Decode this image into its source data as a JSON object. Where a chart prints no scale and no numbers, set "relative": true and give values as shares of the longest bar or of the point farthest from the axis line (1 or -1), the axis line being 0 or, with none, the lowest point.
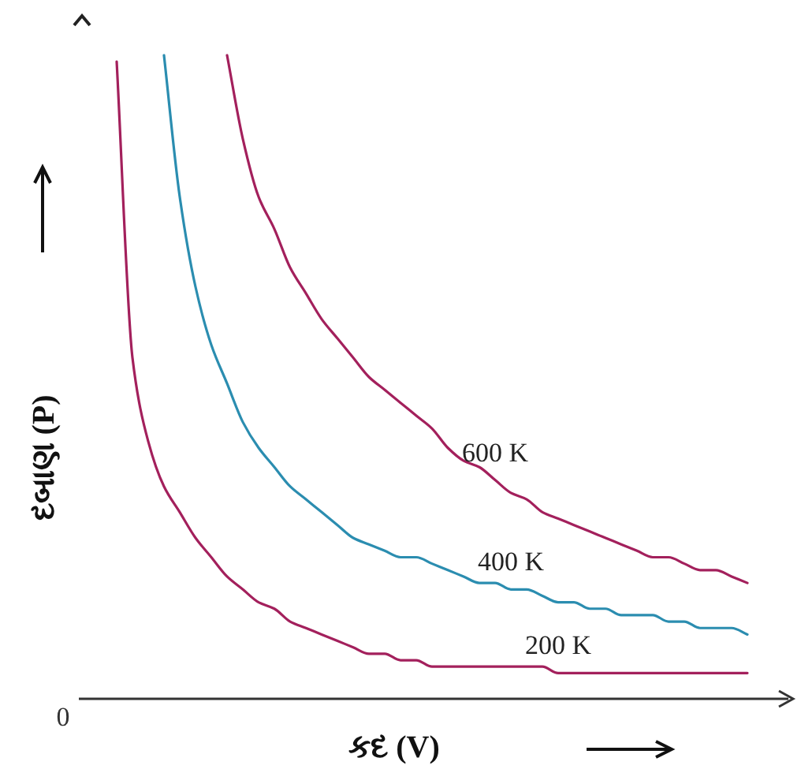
{
  "chart_data": {
    "type": "line",
    "relative": true,
    "xlabel": "કદ (V)",
    "ylabel": "દબાણ (P)",
    "annotations": [
      "0"
    ],
    "line_style": "solid",
    "categories": [
      null,
      null,
      null,
      null,
      null,
      null,
      null,
      null,
      null,
      null,
      null,
      null,
      null,
      null,
      null,
      null,
      null,
      null,
      null,
      null,
      null,
      null,
      null,
      null,
      null,
      null,
      null,
      null,
      null,
      null,
      null,
      null,
      null,
      null,
      null,
      null,
      null,
      null,
      null,
      null,
      null
    ],
    "series": [
      {
        "name": "600 K",
        "color": "#a3205c",
        "values": [
          null,
          null,
          null,
          null,
          null,
          null,
          null,
          1.0,
          0.87,
          0.78,
          0.73,
          0.67,
          0.63,
          0.59,
          0.56,
          0.53,
          0.5,
          0.48,
          0.46,
          0.44,
          0.42,
          0.39,
          0.37,
          0.36,
          0.34,
          0.32,
          0.31,
          0.29,
          0.28,
          0.27,
          0.26,
          0.25,
          0.24,
          0.23,
          0.22,
          0.22,
          0.21,
          0.2,
          0.2,
          0.19,
          0.18
        ]
      },
      {
        "name": "400 K",
        "color": "#2b8db0",
        "values": [
          null,
          null,
          null,
          1.0,
          0.78,
          0.64,
          0.55,
          0.49,
          0.43,
          0.39,
          0.36,
          0.33,
          0.31,
          0.29,
          0.27,
          0.25,
          0.24,
          0.23,
          0.22,
          0.22,
          0.21,
          0.2,
          0.19,
          0.18,
          0.18,
          0.17,
          0.17,
          0.16,
          0.15,
          0.15,
          0.14,
          0.14,
          0.13,
          0.13,
          0.13,
          0.12,
          0.12,
          0.11,
          0.11,
          0.11,
          0.1
        ]
      },
      {
        "name": "200 K",
        "color": "#a3205c",
        "values": [
          0.99,
          0.53,
          0.4,
          0.33,
          0.29,
          0.25,
          0.22,
          0.19,
          0.17,
          0.15,
          0.14,
          0.12,
          0.11,
          0.1,
          0.09,
          0.08,
          0.07,
          0.07,
          0.06,
          0.06,
          0.05,
          0.05,
          0.05,
          0.05,
          0.05,
          0.05,
          0.05,
          0.05,
          0.04,
          0.04,
          0.04,
          0.04,
          0.04,
          0.04,
          0.04,
          0.04,
          0.04,
          0.04,
          0.04,
          0.04,
          0.04
        ]
      }
    ]
  }
}
